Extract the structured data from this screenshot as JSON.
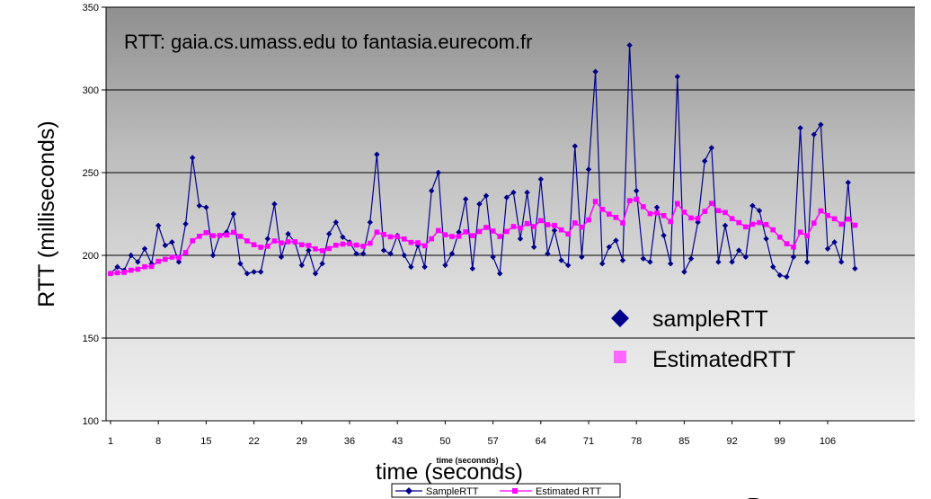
{
  "chart_data": {
    "type": "line",
    "title": "RTT: gaia.cs.umass.edu to fantasia.eurecom.fr",
    "xlabel": "time (seconds)",
    "xlabel_small": "time (seconnds)",
    "ylabel": "RTT (milliseconds)",
    "ylim": [
      100,
      350
    ],
    "yticks": [
      100,
      150,
      200,
      250,
      300,
      350
    ],
    "xlim": [
      1,
      110
    ],
    "xticks": [
      1,
      8,
      15,
      22,
      29,
      36,
      43,
      50,
      57,
      64,
      71,
      78,
      85,
      92,
      99,
      106
    ],
    "grid": "horizontal",
    "series": [
      {
        "name": "sampleRTT",
        "small_name": "SampleRTT",
        "color": "#00008b",
        "marker": "diamond",
        "values": [
          189,
          193,
          191,
          200,
          196,
          204,
          195,
          218,
          206,
          208,
          196,
          219,
          259,
          230,
          229,
          200,
          212,
          214,
          225,
          195,
          189,
          190,
          190,
          210,
          231,
          199,
          213,
          208,
          194,
          203,
          189,
          195,
          213,
          220,
          211,
          208,
          201,
          201,
          220,
          261,
          203,
          201,
          212,
          200,
          193,
          206,
          193,
          239,
          250,
          194,
          201,
          214,
          234,
          192,
          231,
          236,
          199,
          189,
          235,
          238,
          210,
          238,
          205,
          246,
          201,
          215,
          197,
          194,
          266,
          199,
          252,
          311,
          195,
          205,
          209,
          197,
          327,
          239,
          198,
          196,
          229,
          212,
          195,
          308,
          190,
          198,
          220,
          257,
          265,
          196,
          218,
          196,
          203,
          199,
          230,
          227,
          210,
          193,
          188,
          187,
          199,
          277,
          196,
          273,
          279,
          204,
          208,
          196,
          244,
          192
        ]
      },
      {
        "name": "EstimatedRTT",
        "small_name": "Estimated RTT",
        "color": "#ff00ff",
        "marker": "square",
        "values": [
          189.0,
          189.5,
          189.7,
          191.0,
          191.6,
          193.1,
          193.3,
          196.4,
          197.6,
          198.9,
          198.6,
          201.7,
          208.8,
          211.5,
          213.7,
          211.9,
          212.0,
          212.3,
          213.9,
          211.5,
          208.7,
          206.4,
          204.9,
          205.5,
          208.7,
          207.5,
          208.2,
          208.2,
          206.4,
          206.0,
          203.9,
          202.8,
          204.1,
          206.1,
          206.8,
          207.0,
          206.2,
          205.5,
          207.3,
          214.0,
          212.6,
          211.2,
          211.3,
          209.9,
          207.8,
          207.6,
          205.8,
          210.0,
          215.0,
          212.4,
          211.4,
          211.5,
          214.2,
          211.9,
          214.4,
          216.9,
          214.7,
          211.4,
          214.4,
          217.4,
          216.5,
          219.2,
          217.4,
          221.0,
          218.5,
          218.1,
          215.4,
          212.9,
          219.6,
          217.0,
          221.4,
          232.6,
          227.8,
          224.9,
          222.9,
          219.6,
          233.1,
          233.9,
          229.4,
          225.2,
          225.6,
          224.0,
          220.4,
          231.3,
          226.1,
          222.6,
          222.3,
          226.6,
          231.4,
          227.0,
          225.9,
          222.2,
          219.8,
          217.2,
          218.8,
          219.8,
          218.6,
          215.4,
          211.0,
          207.0,
          205.0,
          214.0,
          211.8,
          219.5,
          226.9,
          224.1,
          222.1,
          218.8,
          221.9,
          218.2
        ]
      }
    ],
    "legend": {
      "large_placement": "inside-right",
      "small_placement": "bottom"
    }
  },
  "corner_text": "D"
}
